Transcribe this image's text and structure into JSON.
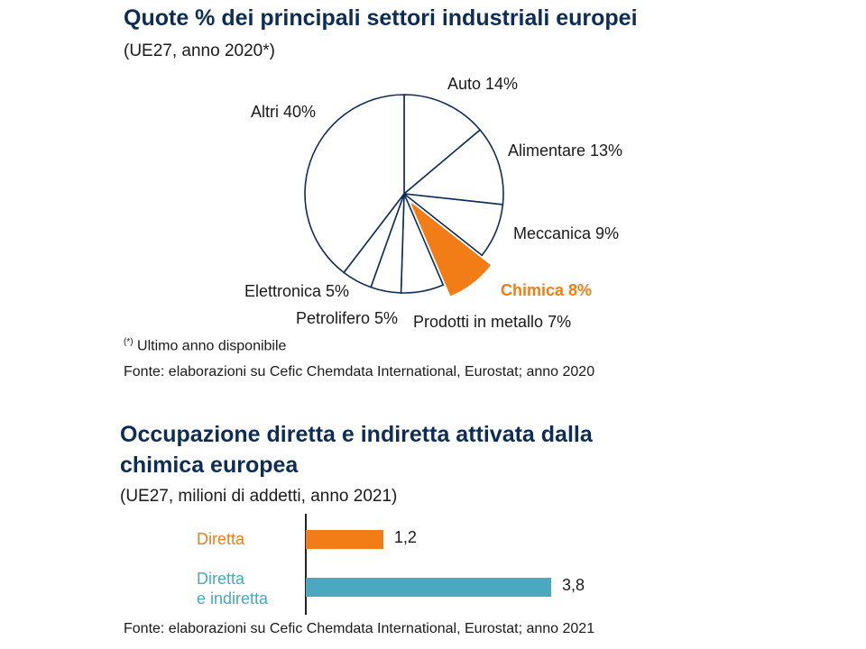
{
  "colors": {
    "title": "#0d2d57",
    "pie_stroke": "#0d2d57",
    "highlight": "#f27c15",
    "bar_direct": "#f27c15",
    "bar_total": "#4aa8c0"
  },
  "pie_section": {
    "title": "Quote % dei principali settori industriali europei",
    "subtitle": "(UE27, anno 2020*)",
    "footnote_mark": "(*)",
    "footnote_text": " Ultimo anno disponibile",
    "source": "Fonte: elaborazioni su Cefic Chemdata International, Eurostat; anno 2020"
  },
  "bar_section": {
    "title_line1": "Occupazione diretta e indiretta attivata dalla",
    "title_line2": "chimica europea",
    "subtitle": "(UE27, milioni di addetti, anno 2021)",
    "source": "Fonte: elaborazioni su Cefic Chemdata International, Eurostat; anno 2021"
  },
  "chart_data": [
    {
      "type": "pie",
      "title": "Quote % dei principali settori industriali europei",
      "subtitle": "(UE27, anno 2020*)",
      "slices": [
        {
          "label": "Auto",
          "value": 14,
          "text": "Auto  14%",
          "highlight": false
        },
        {
          "label": "Alimentare",
          "value": 13,
          "text": "Alimentare  13%",
          "highlight": false
        },
        {
          "label": "Meccanica",
          "value": 9,
          "text": "Meccanica 9%",
          "highlight": false
        },
        {
          "label": "Chimica",
          "value": 8,
          "text": "Chimica 8%",
          "highlight": true
        },
        {
          "label": "Prodotti in metallo",
          "value": 7,
          "text": "Prodotti in metallo  7%",
          "highlight": false
        },
        {
          "label": "Petrolifero",
          "value": 5,
          "text": "Petrolifero 5%",
          "highlight": false
        },
        {
          "label": "Elettronica",
          "value": 5,
          "text": "Elettronica 5%",
          "highlight": false
        },
        {
          "label": "Altri",
          "value": 40,
          "text": "Altri 40%",
          "highlight": false
        }
      ]
    },
    {
      "type": "bar",
      "orientation": "horizontal",
      "title": "Occupazione diretta e indiretta attivata dalla chimica europea",
      "subtitle": "(UE27, milioni di addetti, anno 2021)",
      "categories": [
        [
          "Diretta"
        ],
        [
          "Diretta",
          "e indiretta"
        ]
      ],
      "values": [
        1.2,
        3.8
      ],
      "value_labels": [
        "1,2",
        "3,8"
      ],
      "xlim": [
        0,
        4
      ]
    }
  ]
}
